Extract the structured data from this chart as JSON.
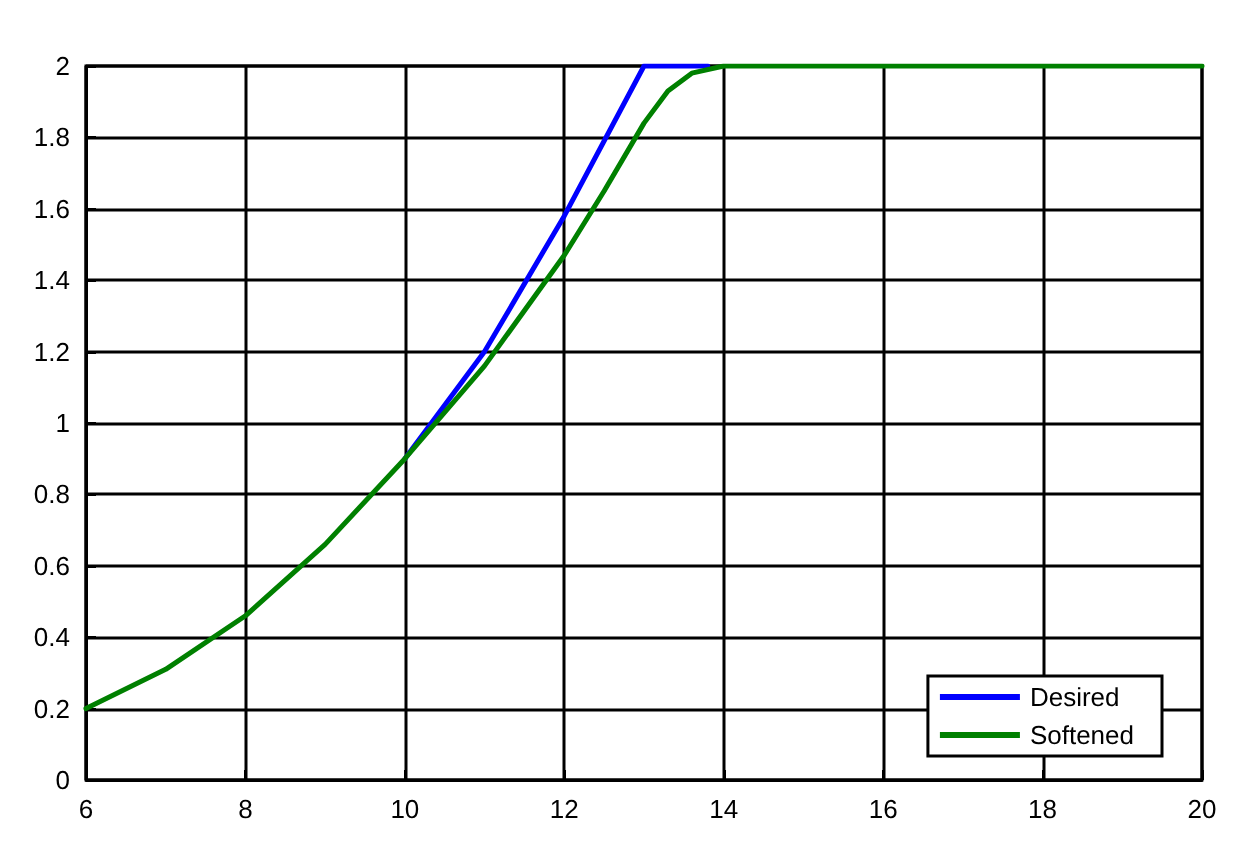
{
  "chart_data": {
    "type": "line",
    "series": [
      {
        "name": "Desired",
        "color": "#0000ff",
        "x": [
          10,
          11,
          12,
          13,
          13.8
        ],
        "values": [
          0.9,
          1.2,
          1.58,
          2.0,
          2.0
        ]
      },
      {
        "name": "Softened",
        "color": "#008000",
        "x": [
          6,
          7,
          8,
          9,
          10,
          11,
          12,
          12.5,
          13,
          13.3,
          13.6,
          14,
          16,
          18,
          20
        ],
        "values": [
          0.2,
          0.31,
          0.46,
          0.66,
          0.9,
          1.16,
          1.47,
          1.65,
          1.84,
          1.93,
          1.98,
          2.0,
          2.0,
          2.0,
          2.0
        ]
      }
    ],
    "xlim": [
      6,
      20
    ],
    "xticks": [
      6,
      8,
      10,
      12,
      14,
      16,
      18,
      20
    ],
    "ylim": [
      0,
      2
    ],
    "yticks": [
      0,
      0.2,
      0.4,
      0.6,
      0.8,
      1,
      1.2,
      1.4,
      1.6,
      1.8,
      2
    ],
    "grid": true,
    "legend": "bottom right",
    "marker": "none",
    "line_style": "solid"
  }
}
